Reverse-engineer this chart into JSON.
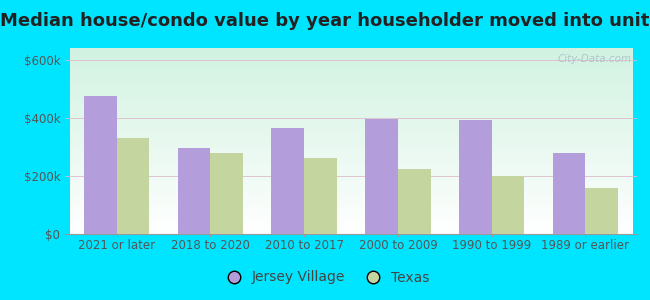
{
  "title": "Median house/condo value by year householder moved into unit",
  "categories": [
    "2021 or later",
    "2018 to 2020",
    "2010 to 2017",
    "2000 to 2009",
    "1990 to 1999",
    "1989 or earlier"
  ],
  "jersey_village": [
    475000,
    295000,
    365000,
    395000,
    393000,
    280000
  ],
  "texas": [
    330000,
    278000,
    263000,
    222000,
    198000,
    160000
  ],
  "jersey_village_color": "#b39ddb",
  "texas_color": "#c5d5a0",
  "background_outer": "#00e5ff",
  "yticks": [
    0,
    200000,
    400000,
    600000
  ],
  "ytick_labels": [
    "$0",
    "$200k",
    "$400k",
    "$600k"
  ],
  "ylim": [
    0,
    640000
  ],
  "bar_width": 0.35,
  "legend_labels": [
    "Jersey Village",
    "Texas"
  ],
  "watermark": "City-Data.com",
  "title_fontsize": 13,
  "tick_fontsize": 8.5,
  "legend_fontsize": 10
}
